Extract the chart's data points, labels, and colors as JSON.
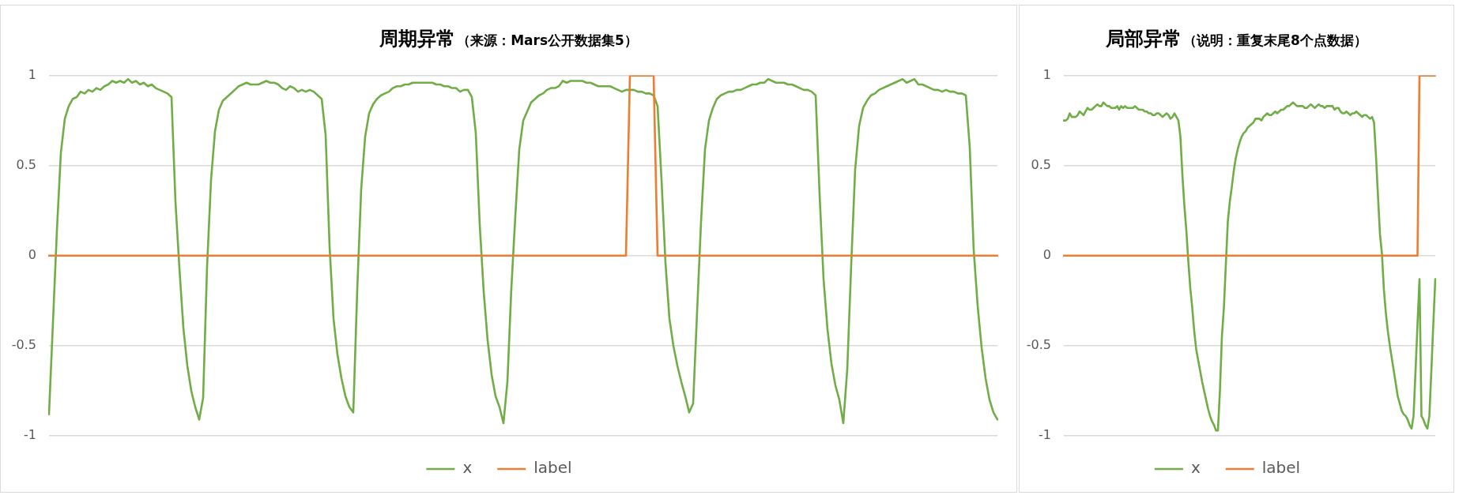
{
  "chart_data": [
    {
      "type": "line",
      "title": "周期异常",
      "subtitle": "（来源：Mars公开数据集5）",
      "categories": [
        null,
        null,
        null,
        null,
        null,
        null,
        null,
        null,
        null,
        null,
        null,
        null,
        null,
        null,
        null,
        null,
        null,
        null,
        null,
        null,
        null,
        null,
        null,
        null,
        null,
        null,
        null,
        null,
        null,
        null,
        null,
        null,
        null,
        null,
        null,
        null,
        null,
        null,
        null,
        null,
        null,
        null,
        null,
        null,
        null,
        null,
        null,
        null,
        null,
        null,
        null,
        null,
        null,
        null,
        null,
        null,
        null,
        null,
        null,
        null,
        null,
        null,
        null,
        null,
        null,
        null,
        null,
        null,
        null,
        null,
        null,
        null,
        null,
        null,
        null,
        null,
        null,
        null,
        null,
        null,
        null,
        null,
        null,
        null,
        null,
        null,
        null,
        null,
        null,
        null,
        null,
        null,
        null,
        null,
        null,
        null,
        null,
        null,
        null,
        null,
        null,
        null,
        null,
        null,
        null,
        null,
        null,
        null,
        null,
        null,
        null,
        null,
        null,
        null,
        null,
        null,
        null,
        null,
        null,
        null,
        null,
        null,
        null,
        null,
        null,
        null,
        null,
        null,
        null,
        null,
        null,
        null,
        null,
        null,
        null,
        null,
        null,
        null,
        null,
        null,
        null,
        null,
        null,
        null,
        null,
        null,
        null,
        null,
        null,
        null,
        null,
        null,
        null,
        null,
        null,
        null,
        null,
        null,
        null,
        null,
        null,
        null,
        null,
        null,
        null,
        null,
        null,
        null,
        null,
        null,
        null,
        null,
        null,
        null,
        null,
        null,
        null,
        null,
        null,
        null,
        null,
        null,
        null,
        null,
        null,
        null,
        null,
        null,
        null,
        null,
        null,
        null,
        null,
        null,
        null,
        null,
        null,
        null,
        null,
        null,
        null,
        null,
        null,
        null,
        null,
        null,
        null,
        null,
        null,
        null,
        null,
        null,
        null,
        null,
        null,
        null,
        null,
        null,
        null,
        null,
        null,
        null,
        null,
        null,
        null,
        null,
        null,
        null,
        null,
        null,
        null,
        null,
        null,
        null,
        null,
        null,
        null,
        null,
        null,
        null,
        null
      ],
      "series": [
        {
          "name": "x",
          "color": "#70ad47",
          "values": [
            -0.88,
            -0.37,
            0.14,
            0.57,
            0.76,
            0.83,
            0.87,
            0.88,
            0.91,
            0.9,
            0.92,
            0.91,
            0.93,
            0.92,
            0.94,
            0.95,
            0.97,
            0.96,
            0.97,
            0.96,
            0.98,
            0.96,
            0.97,
            0.95,
            0.96,
            0.94,
            0.95,
            0.93,
            0.92,
            0.91,
            0.9,
            0.88,
            0.3,
            -0.07,
            -0.4,
            -0.61,
            -0.75,
            -0.84,
            -0.91,
            -0.79,
            -0.06,
            0.42,
            0.69,
            0.81,
            0.86,
            0.88,
            0.9,
            0.92,
            0.94,
            0.95,
            0.96,
            0.95,
            0.95,
            0.95,
            0.96,
            0.97,
            0.96,
            0.96,
            0.95,
            0.93,
            0.92,
            0.94,
            0.93,
            0.91,
            0.92,
            0.91,
            0.92,
            0.91,
            0.89,
            0.87,
            0.67,
            0.05,
            -0.35,
            -0.55,
            -0.68,
            -0.78,
            -0.84,
            -0.87,
            -0.19,
            0.37,
            0.66,
            0.79,
            0.84,
            0.87,
            0.89,
            0.9,
            0.91,
            0.93,
            0.94,
            0.94,
            0.95,
            0.95,
            0.96,
            0.96,
            0.96,
            0.96,
            0.96,
            0.96,
            0.95,
            0.95,
            0.94,
            0.94,
            0.93,
            0.93,
            0.91,
            0.92,
            0.92,
            0.88,
            0.68,
            0.17,
            -0.2,
            -0.47,
            -0.66,
            -0.78,
            -0.84,
            -0.93,
            -0.7,
            -0.18,
            0.22,
            0.59,
            0.75,
            0.8,
            0.85,
            0.87,
            0.89,
            0.9,
            0.92,
            0.93,
            0.93,
            0.94,
            0.97,
            0.96,
            0.97,
            0.97,
            0.97,
            0.97,
            0.96,
            0.96,
            0.95,
            0.94,
            0.94,
            0.94,
            0.94,
            0.93,
            0.92,
            0.91,
            0.92,
            0.92,
            0.92,
            0.91,
            0.91,
            0.9,
            0.9,
            0.89,
            0.83,
            0.42,
            -0.04,
            -0.35,
            -0.5,
            -0.61,
            -0.7,
            -0.78,
            -0.87,
            -0.82,
            -0.31,
            0.19,
            0.59,
            0.75,
            0.82,
            0.87,
            0.89,
            0.9,
            0.91,
            0.91,
            0.92,
            0.92,
            0.93,
            0.94,
            0.95,
            0.95,
            0.96,
            0.96,
            0.98,
            0.97,
            0.96,
            0.96,
            0.96,
            0.95,
            0.95,
            0.94,
            0.93,
            0.92,
            0.92,
            0.91,
            0.89,
            0.34,
            -0.13,
            -0.41,
            -0.6,
            -0.72,
            -0.8,
            -0.93,
            -0.63,
            -0.05,
            0.48,
            0.72,
            0.82,
            0.86,
            0.89,
            0.9,
            0.92,
            0.93,
            0.94,
            0.95,
            0.96,
            0.97,
            0.98,
            0.96,
            0.97,
            0.98,
            0.95,
            0.95,
            0.94,
            0.93,
            0.92,
            0.92,
            0.91,
            0.92,
            0.91,
            0.91,
            0.9,
            0.9,
            0.89,
            0.6,
            0.03,
            -0.28,
            -0.51,
            -0.68,
            -0.8,
            -0.87,
            -0.91
          ]
        },
        {
          "name": "label",
          "color": "#ed7d31",
          "values": [
            0,
            0,
            0,
            0,
            0,
            0,
            0,
            0,
            0,
            0,
            0,
            0,
            0,
            0,
            0,
            0,
            0,
            0,
            0,
            0,
            0,
            0,
            0,
            0,
            0,
            0,
            0,
            0,
            0,
            0,
            0,
            0,
            0,
            0,
            0,
            0,
            0,
            0,
            0,
            0,
            0,
            0,
            0,
            0,
            0,
            0,
            0,
            0,
            0,
            0,
            0,
            0,
            0,
            0,
            0,
            0,
            0,
            0,
            0,
            0,
            0,
            0,
            0,
            0,
            0,
            0,
            0,
            0,
            0,
            0,
            0,
            0,
            0,
            0,
            0,
            0,
            0,
            0,
            0,
            0,
            0,
            0,
            0,
            0,
            0,
            0,
            0,
            0,
            0,
            0,
            0,
            0,
            0,
            0,
            0,
            0,
            0,
            0,
            0,
            0,
            0,
            0,
            0,
            0,
            0,
            0,
            0,
            0,
            0,
            0,
            0,
            0,
            0,
            0,
            0,
            0,
            0,
            0,
            0,
            0,
            0,
            0,
            0,
            0,
            0,
            0,
            0,
            0,
            0,
            0,
            0,
            0,
            0,
            0,
            0,
            0,
            0,
            0,
            0,
            0,
            0,
            0,
            0,
            0,
            0,
            0,
            0,
            1,
            1,
            1,
            1,
            1,
            1,
            1,
            0,
            0,
            0,
            0,
            0,
            0,
            0,
            0,
            0,
            0,
            0,
            0,
            0,
            0,
            0,
            0,
            0,
            0,
            0,
            0,
            0,
            0,
            0,
            0,
            0,
            0,
            0,
            0,
            0,
            0,
            0,
            0,
            0,
            0,
            0,
            0,
            0,
            0,
            0,
            0,
            0,
            0,
            0,
            0,
            0,
            0,
            0,
            0,
            0,
            0,
            0,
            0,
            0,
            0,
            0,
            0,
            0,
            0,
            0,
            0,
            0,
            0,
            0,
            0,
            0,
            0,
            0,
            0,
            0,
            0,
            0,
            0,
            0,
            0,
            0,
            0,
            0,
            0,
            0,
            0,
            0,
            0,
            0,
            0,
            0,
            0,
            0
          ]
        }
      ],
      "ylim": [
        -1,
        1
      ],
      "yticks": [
        -1,
        -0.5,
        0,
        0.5,
        1
      ],
      "grid": "y",
      "legend": "bottom",
      "marker": "none"
    },
    {
      "type": "line",
      "title": "局部异常",
      "subtitle": "（说明：重复末尾8个点数据）",
      "categories": [
        null,
        null,
        null,
        null,
        null,
        null,
        null,
        null,
        null,
        null,
        null,
        null,
        null,
        null,
        null,
        null,
        null,
        null,
        null,
        null,
        null,
        null,
        null,
        null,
        null,
        null,
        null,
        null,
        null,
        null,
        null,
        null,
        null,
        null,
        null,
        null,
        null,
        null,
        null,
        null,
        null,
        null,
        null,
        null,
        null,
        null,
        null,
        null,
        null,
        null,
        null,
        null,
        null,
        null,
        null,
        null,
        null,
        null,
        null,
        null,
        null,
        null,
        null,
        null,
        null,
        null,
        null,
        null,
        null,
        null,
        null,
        null,
        null,
        null,
        null,
        null,
        null,
        null,
        null,
        null,
        null,
        null,
        null,
        null,
        null,
        null,
        null,
        null,
        null,
        null,
        null,
        null,
        null,
        null,
        null,
        null,
        null,
        null,
        null,
        null,
        null,
        null,
        null,
        null,
        null,
        null,
        null,
        null,
        null,
        null,
        null,
        null,
        null,
        null,
        null,
        null,
        null,
        null,
        null,
        null,
        null,
        null,
        null,
        null,
        null,
        null,
        null,
        null,
        null,
        null,
        null,
        null,
        null,
        null,
        null,
        null,
        null,
        null,
        null,
        null,
        null,
        null,
        null,
        null,
        null,
        null,
        null,
        null,
        null,
        null,
        null,
        null,
        null,
        null,
        null,
        null,
        null,
        null,
        null,
        null,
        null,
        null,
        null,
        null,
        null,
        null,
        null,
        null,
        null,
        null,
        null,
        null,
        null,
        null,
        null,
        null,
        null,
        null,
        null,
        null,
        null,
        null,
        null,
        null,
        null,
        null,
        null,
        null,
        null
      ],
      "series": [
        {
          "name": "x",
          "color": "#70ad47",
          "values": [
            0.75,
            0.75,
            0.76,
            0.79,
            0.77,
            0.77,
            0.77,
            0.78,
            0.8,
            0.79,
            0.78,
            0.8,
            0.82,
            0.81,
            0.81,
            0.82,
            0.83,
            0.84,
            0.83,
            0.83,
            0.85,
            0.84,
            0.83,
            0.83,
            0.82,
            0.82,
            0.82,
            0.83,
            0.81,
            0.83,
            0.82,
            0.83,
            0.82,
            0.82,
            0.82,
            0.82,
            0.83,
            0.82,
            0.81,
            0.81,
            0.81,
            0.8,
            0.8,
            0.79,
            0.79,
            0.78,
            0.78,
            0.79,
            0.79,
            0.78,
            0.77,
            0.78,
            0.79,
            0.78,
            0.76,
            0.77,
            0.79,
            0.77,
            0.75,
            0.66,
            0.45,
            0.28,
            0.14,
            -0.03,
            -0.18,
            -0.29,
            -0.42,
            -0.52,
            -0.58,
            -0.64,
            -0.7,
            -0.75,
            -0.8,
            -0.85,
            -0.89,
            -0.92,
            -0.94,
            -0.97,
            -0.97,
            -0.75,
            -0.45,
            -0.29,
            -0.05,
            0.19,
            0.3,
            0.38,
            0.47,
            0.54,
            0.59,
            0.63,
            0.66,
            0.68,
            0.69,
            0.71,
            0.72,
            0.73,
            0.74,
            0.76,
            0.76,
            0.76,
            0.75,
            0.77,
            0.78,
            0.79,
            0.78,
            0.78,
            0.79,
            0.8,
            0.79,
            0.8,
            0.81,
            0.81,
            0.82,
            0.83,
            0.83,
            0.84,
            0.85,
            0.84,
            0.83,
            0.83,
            0.83,
            0.83,
            0.82,
            0.82,
            0.83,
            0.84,
            0.83,
            0.82,
            0.83,
            0.84,
            0.83,
            0.83,
            0.82,
            0.83,
            0.83,
            0.83,
            0.83,
            0.81,
            0.82,
            0.82,
            0.8,
            0.79,
            0.79,
            0.8,
            0.79,
            0.78,
            0.79,
            0.79,
            0.8,
            0.79,
            0.78,
            0.77,
            0.78,
            0.78,
            0.77,
            0.76,
            0.77,
            0.74,
            0.55,
            0.33,
            0.12,
            0.01,
            -0.19,
            -0.32,
            -0.42,
            -0.5,
            -0.57,
            -0.64,
            -0.71,
            -0.78,
            -0.82,
            -0.86,
            -0.88,
            -0.89,
            -0.91,
            -0.94,
            -0.96,
            -0.89,
            -0.64,
            -0.38,
            -0.13,
            -0.89,
            -0.91,
            -0.94,
            -0.96,
            -0.89,
            -0.64,
            -0.38,
            -0.13
          ]
        },
        {
          "name": "label",
          "color": "#ed7d31",
          "values": [
            0,
            0,
            0,
            0,
            0,
            0,
            0,
            0,
            0,
            0,
            0,
            0,
            0,
            0,
            0,
            0,
            0,
            0,
            0,
            0,
            0,
            0,
            0,
            0,
            0,
            0,
            0,
            0,
            0,
            0,
            0,
            0,
            0,
            0,
            0,
            0,
            0,
            0,
            0,
            0,
            0,
            0,
            0,
            0,
            0,
            0,
            0,
            0,
            0,
            0,
            0,
            0,
            0,
            0,
            0,
            0,
            0,
            0,
            0,
            0,
            0,
            0,
            0,
            0,
            0,
            0,
            0,
            0,
            0,
            0,
            0,
            0,
            0,
            0,
            0,
            0,
            0,
            0,
            0,
            0,
            0,
            0,
            0,
            0,
            0,
            0,
            0,
            0,
            0,
            0,
            0,
            0,
            0,
            0,
            0,
            0,
            0,
            0,
            0,
            0,
            0,
            0,
            0,
            0,
            0,
            0,
            0,
            0,
            0,
            0,
            0,
            0,
            0,
            0,
            0,
            0,
            0,
            0,
            0,
            0,
            0,
            0,
            0,
            0,
            0,
            0,
            0,
            0,
            0,
            0,
            0,
            0,
            0,
            0,
            0,
            0,
            0,
            0,
            0,
            0,
            0,
            0,
            0,
            0,
            0,
            0,
            0,
            0,
            0,
            0,
            0,
            0,
            0,
            0,
            0,
            0,
            0,
            0,
            0,
            0,
            0,
            0,
            0,
            0,
            0,
            0,
            0,
            0,
            0,
            0,
            0,
            0,
            0,
            0,
            0,
            0,
            0,
            0,
            0,
            0,
            1,
            1,
            1,
            1,
            1,
            1,
            1,
            1,
            1
          ]
        }
      ],
      "ylim": [
        -1,
        1
      ],
      "yticks": [
        -1,
        -0.5,
        0,
        0.5,
        1
      ],
      "grid": "y",
      "legend": "bottom",
      "marker": "none"
    }
  ]
}
